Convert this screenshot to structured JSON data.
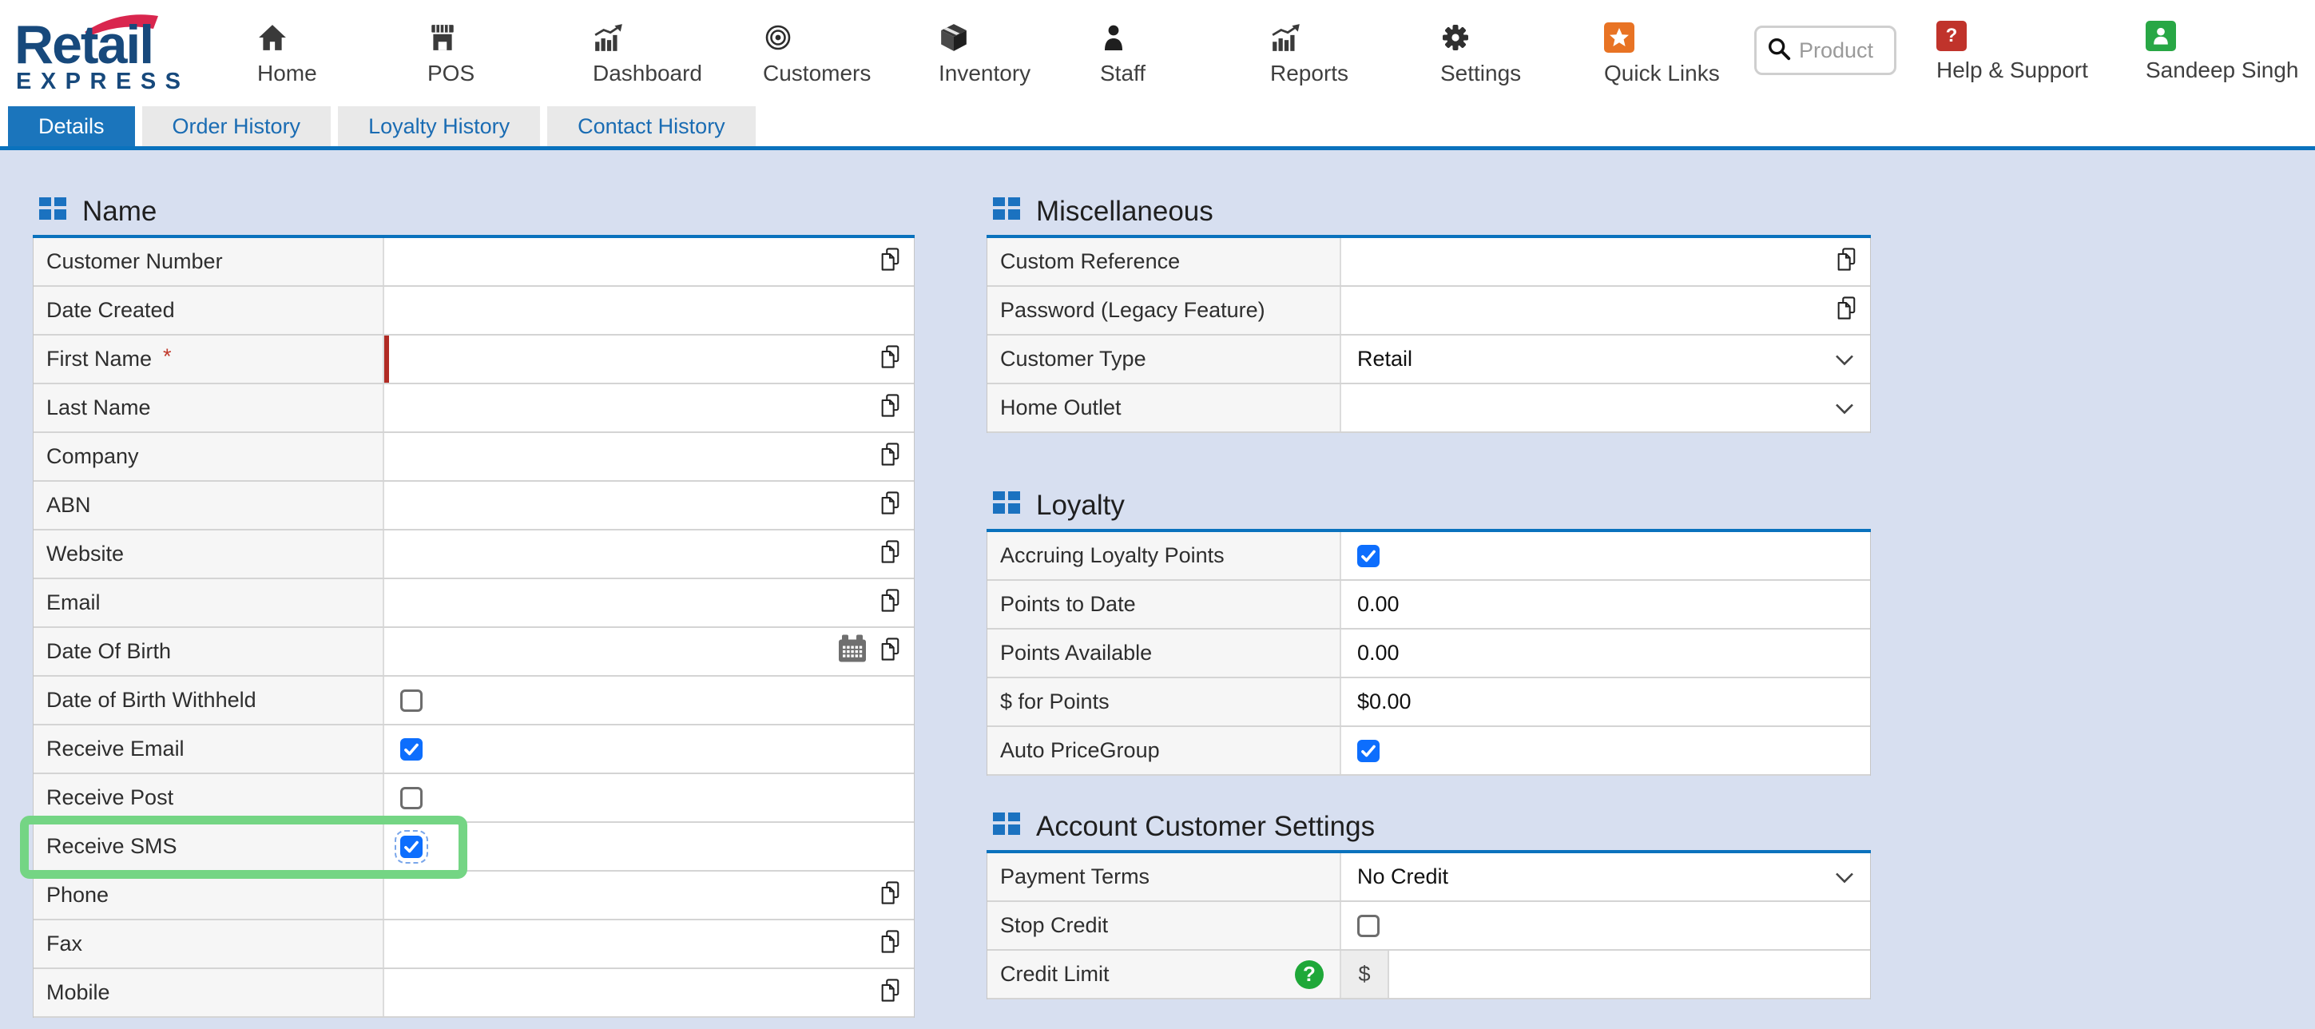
{
  "logo": {
    "line1": "Retail",
    "line2": "EXPRESS"
  },
  "nav": {
    "items": [
      {
        "label": "Home",
        "icon": "home-icon"
      },
      {
        "label": "POS",
        "icon": "pos-icon"
      },
      {
        "label": "Dashboard",
        "icon": "dashboard-icon"
      },
      {
        "label": "Customers",
        "icon": "customers-icon"
      },
      {
        "label": "Inventory",
        "icon": "inventory-icon"
      },
      {
        "label": "Staff",
        "icon": "staff-icon"
      },
      {
        "label": "Reports",
        "icon": "reports-icon"
      },
      {
        "label": "Settings",
        "icon": "settings-icon"
      },
      {
        "label": "Quick Links",
        "icon": "quick-links-icon"
      }
    ],
    "search": {
      "placeholder": "Product",
      "icon": "search-icon"
    },
    "help": {
      "label": "Help & Support",
      "icon": "help-icon"
    },
    "user": {
      "name": "Sandeep Singh",
      "icon": "user-icon"
    }
  },
  "tabs": [
    {
      "label": "Details",
      "active": true
    },
    {
      "label": "Order History",
      "active": false
    },
    {
      "label": "Loyalty History",
      "active": false
    },
    {
      "label": "Contact History",
      "active": false
    }
  ],
  "sections": {
    "name": {
      "title": "Name",
      "rows": [
        {
          "label": "Customer Number",
          "control": "input",
          "value": "",
          "copy": true
        },
        {
          "label": "Date Created",
          "control": "input",
          "value": "",
          "copy": false
        },
        {
          "label": "First Name",
          "control": "input",
          "value": "",
          "copy": true,
          "required": true
        },
        {
          "label": "Last Name",
          "control": "input",
          "value": "",
          "copy": true
        },
        {
          "label": "Company",
          "control": "input",
          "value": "",
          "copy": true
        },
        {
          "label": "ABN",
          "control": "input",
          "value": "",
          "copy": true
        },
        {
          "label": "Website",
          "control": "input",
          "value": "",
          "copy": true
        },
        {
          "label": "Email",
          "control": "input",
          "value": "",
          "copy": true
        },
        {
          "label": "Date Of Birth",
          "control": "input",
          "value": "",
          "copy": true,
          "calendar": true
        },
        {
          "label": "Date of Birth Withheld",
          "control": "checkbox",
          "checked": false
        },
        {
          "label": "Receive Email",
          "control": "checkbox",
          "checked": true
        },
        {
          "label": "Receive Post",
          "control": "checkbox",
          "checked": false
        },
        {
          "label": "Receive SMS",
          "control": "checkbox",
          "checked": true,
          "highlighted": true,
          "focus": true
        },
        {
          "label": "Phone",
          "control": "input",
          "value": "",
          "copy": true
        },
        {
          "label": "Fax",
          "control": "input",
          "value": "",
          "copy": true
        },
        {
          "label": "Mobile",
          "control": "input",
          "value": "",
          "copy": true
        }
      ]
    },
    "miscellaneous": {
      "title": "Miscellaneous",
      "rows": [
        {
          "label": "Custom Reference",
          "control": "input",
          "value": "",
          "copy": true
        },
        {
          "label": "Password (Legacy Feature)",
          "control": "input",
          "value": "",
          "copy": true
        },
        {
          "label": "Customer Type",
          "control": "select",
          "value": "Retail"
        },
        {
          "label": "Home Outlet",
          "control": "select",
          "value": ""
        }
      ]
    },
    "loyalty": {
      "title": "Loyalty",
      "rows": [
        {
          "label": "Accruing Loyalty Points",
          "control": "checkbox",
          "checked": true
        },
        {
          "label": "Points to Date",
          "control": "static",
          "value": "0.00"
        },
        {
          "label": "Points Available",
          "control": "static",
          "value": "0.00"
        },
        {
          "label": "$ for Points",
          "control": "static",
          "value": "$0.00"
        },
        {
          "label": "Auto PriceGroup",
          "control": "checkbox",
          "checked": true
        }
      ]
    },
    "account": {
      "title": "Account Customer Settings",
      "rows": [
        {
          "label": "Payment Terms",
          "control": "select",
          "value": "No Credit"
        },
        {
          "label": "Stop Credit",
          "control": "checkbox",
          "checked": false
        },
        {
          "label": "Credit Limit",
          "control": "currency",
          "prefix": "$",
          "value": "",
          "help": true
        }
      ]
    }
  },
  "colors": {
    "accent_blue": "#0a72bd",
    "tab_active": "#1b75bc",
    "checkbox_blue": "#0d6efd",
    "highlight_green": "#74d584",
    "required_red": "#b02b24",
    "help_green": "#1fa839",
    "quick_links_orange": "#e87324",
    "help_badge_red": "#c0332b",
    "user_badge_green": "#28a745",
    "logo_blue": "#17497c",
    "logo_red": "#d9264e",
    "content_bg": "#d7dff0"
  }
}
